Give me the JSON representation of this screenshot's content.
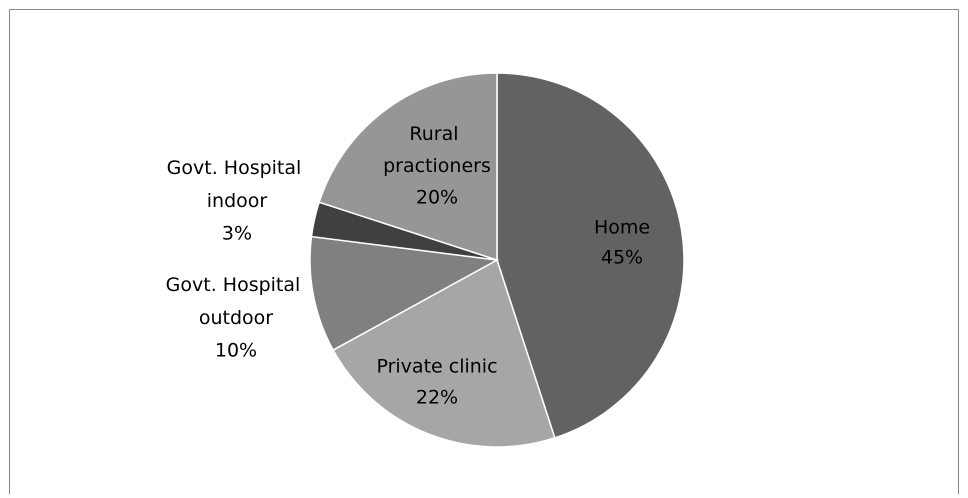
{
  "chart_data": {
    "type": "pie",
    "categories": [
      "Home",
      "Private clinic",
      "Govt. Hospital outdoor",
      "Govt. Hospital indoor",
      "Rural practioners"
    ],
    "values": [
      45,
      22,
      10,
      3,
      20
    ],
    "value_labels": [
      "45%",
      "22%",
      "10%",
      "3%",
      "20%"
    ],
    "colors": [
      "#626262",
      "#a6a6a6",
      "#808080",
      "#404040",
      "#969696"
    ]
  }
}
